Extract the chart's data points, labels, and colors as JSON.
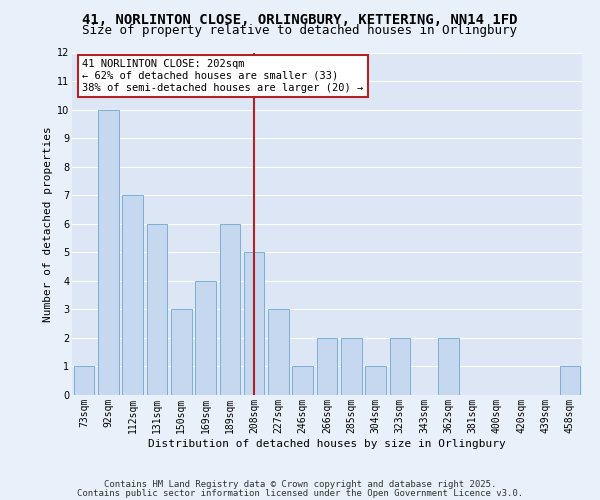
{
  "title_line1": "41, NORLINTON CLOSE, ORLINGBURY, KETTERING, NN14 1FD",
  "title_line2": "Size of property relative to detached houses in Orlingbury",
  "xlabel": "Distribution of detached houses by size in Orlingbury",
  "ylabel": "Number of detached properties",
  "categories": [
    "73sqm",
    "92sqm",
    "112sqm",
    "131sqm",
    "150sqm",
    "169sqm",
    "189sqm",
    "208sqm",
    "227sqm",
    "246sqm",
    "266sqm",
    "285sqm",
    "304sqm",
    "323sqm",
    "343sqm",
    "362sqm",
    "381sqm",
    "400sqm",
    "420sqm",
    "439sqm",
    "458sqm"
  ],
  "values": [
    1,
    10,
    7,
    6,
    3,
    4,
    6,
    5,
    3,
    1,
    2,
    2,
    1,
    2,
    0,
    2,
    0,
    0,
    0,
    0,
    1
  ],
  "bar_color": "#c5d8f0",
  "bar_edge_color": "#7aafd4",
  "reference_line_x": "208sqm",
  "reference_line_color": "#b22222",
  "annotation_title": "41 NORLINTON CLOSE: 202sqm",
  "annotation_line1": "← 62% of detached houses are smaller (33)",
  "annotation_line2": "38% of semi-detached houses are larger (20) →",
  "annotation_box_color": "#ffffff",
  "annotation_box_edge_color": "#b22222",
  "ylim": [
    0,
    12
  ],
  "yticks": [
    0,
    1,
    2,
    3,
    4,
    5,
    6,
    7,
    8,
    9,
    10,
    11,
    12
  ],
  "background_color": "#dce6f5",
  "fig_background_color": "#e8f0fa",
  "grid_color": "#ffffff",
  "footer_line1": "Contains HM Land Registry data © Crown copyright and database right 2025.",
  "footer_line2": "Contains public sector information licensed under the Open Government Licence v3.0.",
  "title_fontsize": 10,
  "subtitle_fontsize": 9,
  "axis_label_fontsize": 8,
  "tick_fontsize": 7,
  "annotation_fontsize": 7.5,
  "footer_fontsize": 6.5
}
